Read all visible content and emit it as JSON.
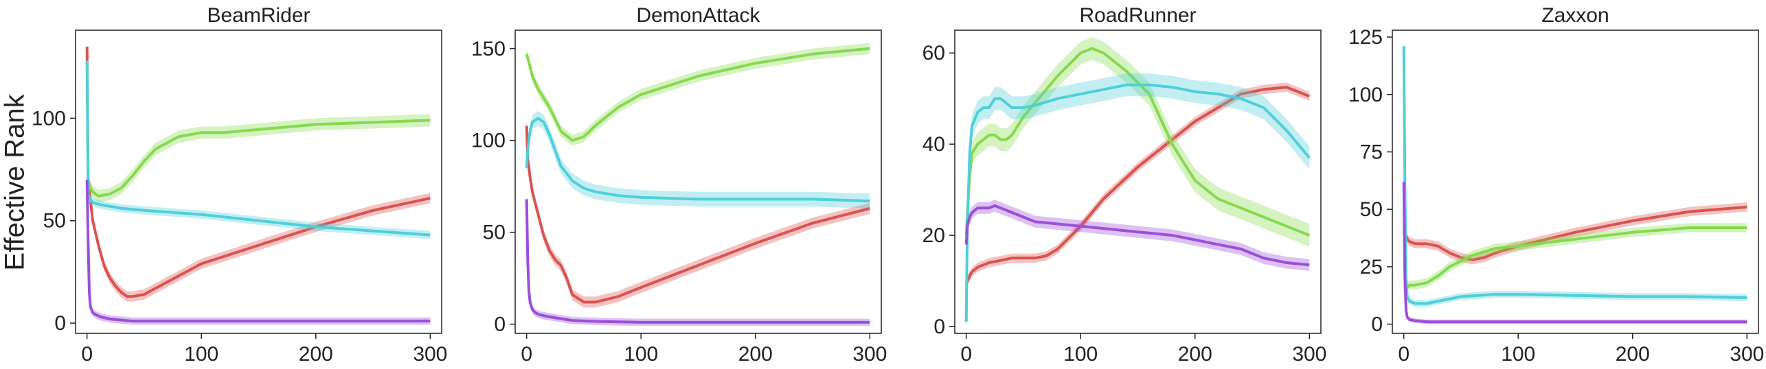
{
  "figure": {
    "ylabel": "Effective Rank"
  },
  "colors": {
    "red": "#d9534f",
    "green": "#86d94e",
    "cyan": "#4fcfd9",
    "purple": "#9b4fd9"
  },
  "chart_data": [
    {
      "type": "line",
      "title": "BeamRider",
      "xlim": [
        -10,
        310
      ],
      "ylim": [
        -5,
        143
      ],
      "xticks": [
        0,
        100,
        200,
        300
      ],
      "yticks": [
        0,
        50,
        100
      ],
      "series": [
        {
          "color": "red",
          "x": [
            0,
            1,
            3,
            5,
            10,
            15,
            20,
            25,
            30,
            35,
            40,
            50,
            60,
            80,
            100,
            150,
            200,
            250,
            300
          ],
          "y": [
            135,
            70,
            60,
            50,
            38,
            28,
            22,
            18,
            15,
            13,
            13,
            14,
            17,
            23,
            29,
            38,
            47,
            55,
            61
          ],
          "band": 2.5
        },
        {
          "color": "green",
          "x": [
            0,
            1,
            3,
            5,
            10,
            20,
            30,
            40,
            50,
            60,
            80,
            100,
            120,
            140,
            160,
            180,
            200,
            250,
            300
          ],
          "y": [
            128,
            70,
            66,
            64,
            62,
            63,
            66,
            72,
            79,
            85,
            91,
            93,
            93,
            94,
            95,
            96,
            97,
            98,
            99
          ],
          "band": 3
        },
        {
          "color": "cyan",
          "x": [
            0,
            1,
            3,
            5,
            10,
            20,
            30,
            50,
            100,
            150,
            200,
            250,
            300
          ],
          "y": [
            128,
            63,
            60,
            59,
            58,
            57,
            56,
            55,
            53,
            50,
            47,
            45,
            43
          ],
          "band": 2
        },
        {
          "color": "purple",
          "x": [
            0,
            1,
            2,
            3,
            5,
            8,
            12,
            20,
            30,
            40,
            100,
            200,
            300
          ],
          "y": [
            70,
            40,
            15,
            8,
            5,
            4,
            3,
            2,
            1.5,
            1,
            1,
            1,
            1
          ],
          "band": 1.8
        }
      ]
    },
    {
      "type": "line",
      "title": "DemonAttack",
      "xlim": [
        -10,
        310
      ],
      "ylim": [
        -5,
        160
      ],
      "xticks": [
        0,
        100,
        200,
        300
      ],
      "yticks": [
        0,
        50,
        100,
        150
      ],
      "series": [
        {
          "color": "red",
          "x": [
            0,
            1,
            3,
            5,
            10,
            15,
            20,
            25,
            30,
            35,
            40,
            50,
            60,
            80,
            100,
            150,
            200,
            250,
            300
          ],
          "y": [
            108,
            90,
            80,
            72,
            60,
            48,
            40,
            35,
            32,
            25,
            16,
            12,
            12,
            15,
            20,
            32,
            44,
            55,
            63
          ],
          "band": 3
        },
        {
          "color": "green",
          "x": [
            0,
            1,
            3,
            5,
            10,
            20,
            30,
            40,
            50,
            60,
            80,
            100,
            150,
            200,
            250,
            300
          ],
          "y": [
            147,
            145,
            140,
            135,
            128,
            118,
            105,
            100,
            102,
            108,
            118,
            125,
            135,
            142,
            147,
            150
          ],
          "band": 3
        },
        {
          "color": "cyan",
          "x": [
            0,
            1,
            3,
            5,
            10,
            15,
            20,
            30,
            40,
            50,
            60,
            80,
            100,
            150,
            200,
            250,
            300
          ],
          "y": [
            85,
            95,
            105,
            110,
            112,
            110,
            103,
            86,
            78,
            74,
            72,
            70,
            69,
            68,
            68,
            68,
            67
          ],
          "band": 4
        },
        {
          "color": "purple",
          "x": [
            0,
            1,
            2,
            3,
            5,
            8,
            12,
            20,
            30,
            40,
            60,
            100,
            200,
            300
          ],
          "y": [
            68,
            35,
            18,
            12,
            8,
            6,
            5,
            4,
            3,
            2,
            1.5,
            1,
            1,
            1
          ],
          "band": 2
        }
      ]
    },
    {
      "type": "line",
      "title": "RoadRunner",
      "xlim": [
        -10,
        310
      ],
      "ylim": [
        -1.5,
        65
      ],
      "xticks": [
        0,
        100,
        200,
        300
      ],
      "yticks": [
        0,
        20,
        40,
        60
      ],
      "series": [
        {
          "color": "red",
          "x": [
            0,
            1,
            5,
            10,
            20,
            30,
            40,
            50,
            60,
            70,
            80,
            100,
            120,
            150,
            180,
            200,
            220,
            240,
            260,
            280,
            300
          ],
          "y": [
            9,
            10,
            12,
            13,
            14,
            14.5,
            15,
            15,
            15,
            15.5,
            17,
            22,
            28,
            35,
            41,
            45,
            48,
            51,
            52,
            52.5,
            50.5
          ],
          "band": 1
        },
        {
          "color": "green",
          "x": [
            0,
            1,
            3,
            5,
            10,
            15,
            20,
            25,
            30,
            35,
            40,
            50,
            60,
            80,
            100,
            110,
            120,
            140,
            160,
            180,
            200,
            220,
            240,
            260,
            280,
            300
          ],
          "y": [
            20,
            25,
            33,
            38,
            40,
            41,
            42,
            42,
            41,
            41,
            42,
            46,
            49,
            55,
            60,
            61,
            60,
            56,
            51,
            40,
            32,
            28,
            26,
            24,
            22,
            20
          ],
          "band": 2.5
        },
        {
          "color": "cyan",
          "x": [
            0,
            1,
            3,
            5,
            10,
            15,
            20,
            25,
            30,
            35,
            40,
            50,
            60,
            80,
            100,
            120,
            140,
            160,
            180,
            200,
            220,
            240,
            260,
            280,
            300
          ],
          "y": [
            1,
            22,
            38,
            44,
            47,
            48,
            48,
            50,
            50,
            49,
            48,
            48,
            48.5,
            50,
            51,
            52,
            53,
            53,
            52.5,
            51.5,
            51,
            50,
            48,
            43,
            37
          ],
          "band": 2.5
        },
        {
          "color": "purple",
          "x": [
            0,
            1,
            3,
            5,
            10,
            15,
            20,
            25,
            30,
            35,
            40,
            50,
            60,
            80,
            100,
            120,
            140,
            160,
            180,
            200,
            220,
            240,
            260,
            280,
            300
          ],
          "y": [
            18,
            22,
            24,
            25,
            26,
            26,
            26,
            26.5,
            26,
            25.5,
            25,
            24,
            23,
            22.5,
            22,
            21.5,
            21,
            20.5,
            20,
            19,
            18,
            17,
            15,
            14,
            13.5
          ],
          "band": 1.3
        }
      ]
    },
    {
      "type": "line",
      "title": "Zaxxon",
      "xlim": [
        -10,
        310
      ],
      "ylim": [
        -4,
        128
      ],
      "xticks": [
        0,
        100,
        200,
        300
      ],
      "yticks": [
        0,
        25,
        50,
        75,
        100,
        125
      ],
      "series": [
        {
          "color": "red",
          "x": [
            0,
            1,
            3,
            5,
            10,
            20,
            30,
            40,
            50,
            60,
            70,
            80,
            100,
            150,
            200,
            250,
            300
          ],
          "y": [
            42,
            40,
            37,
            36,
            35,
            35,
            34,
            31,
            29,
            28,
            29,
            31,
            34,
            40,
            45,
            49,
            51
          ],
          "band": 2
        },
        {
          "color": "green",
          "x": [
            0,
            1,
            3,
            5,
            10,
            20,
            30,
            40,
            60,
            80,
            100,
            150,
            200,
            250,
            300
          ],
          "y": [
            16,
            16,
            16,
            17,
            17,
            18,
            21,
            25,
            30,
            33,
            34,
            37,
            40,
            42,
            42
          ],
          "band": 2
        },
        {
          "color": "cyan",
          "x": [
            0,
            1,
            2,
            3,
            5,
            10,
            20,
            30,
            50,
            80,
            100,
            150,
            200,
            250,
            300
          ],
          "y": [
            121,
            60,
            20,
            12,
            10,
            9,
            9,
            10,
            12,
            13,
            13,
            12.5,
            12,
            12,
            11.5
          ],
          "band": 1.5
        },
        {
          "color": "purple",
          "x": [
            0,
            1,
            2,
            3,
            5,
            10,
            20,
            30,
            100,
            200,
            300
          ],
          "y": [
            62,
            20,
            6,
            3,
            2,
            1.5,
            1,
            1,
            1,
            1,
            1
          ],
          "band": 1
        }
      ]
    }
  ]
}
